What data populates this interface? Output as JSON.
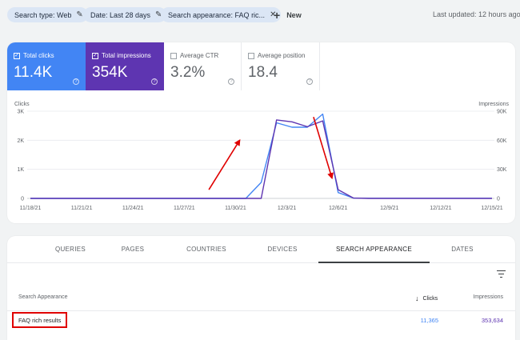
{
  "filters": {
    "chips": [
      {
        "label": "Search type: Web",
        "icon": "pencil-icon"
      },
      {
        "label": "Date: Last 28 days",
        "icon": "pencil-icon"
      },
      {
        "label": "Search appearance: FAQ ric...",
        "icon": "close-icon"
      }
    ],
    "new_label": "New",
    "last_updated": "Last updated: 12 hours ago"
  },
  "metrics": [
    {
      "label": "Total clicks",
      "value": "11.4K",
      "selected": true,
      "color": "#4285f4"
    },
    {
      "label": "Total impressions",
      "value": "354K",
      "selected": true,
      "color": "#5e35b1"
    },
    {
      "label": "Average CTR",
      "value": "3.2%",
      "selected": false
    },
    {
      "label": "Average position",
      "value": "18.4",
      "selected": false
    }
  ],
  "chart_data": {
    "type": "line",
    "left_axis_label": "Clicks",
    "right_axis_label": "Impressions",
    "left_ticks": [
      "3K",
      "2K",
      "1K",
      "0"
    ],
    "right_ticks": [
      "90K",
      "60K",
      "30K",
      "0"
    ],
    "x_ticks": [
      "11/18/21",
      "11/21/21",
      "11/24/21",
      "11/27/21",
      "11/30/21",
      "12/3/21",
      "12/6/21",
      "12/9/21",
      "12/12/21",
      "12/15/21"
    ],
    "ylim_left": [
      0,
      3000
    ],
    "ylim_right": [
      0,
      90000
    ],
    "series": [
      {
        "name": "Clicks",
        "color": "#4285f4",
        "axis": "left",
        "values": [
          0,
          0,
          0,
          0,
          0,
          0,
          0,
          0,
          0,
          0,
          0,
          0,
          0,
          0,
          0,
          550,
          2600,
          2450,
          2450,
          2900,
          200,
          10,
          5,
          5,
          5,
          5,
          5,
          5,
          5,
          5,
          5
        ]
      },
      {
        "name": "Impressions",
        "color": "#5e35b1",
        "axis": "right",
        "values": [
          0,
          0,
          0,
          0,
          0,
          0,
          0,
          0,
          0,
          0,
          0,
          0,
          0,
          0,
          0,
          0,
          81000,
          79000,
          74000,
          80000,
          9000,
          300,
          0,
          0,
          0,
          0,
          0,
          0,
          0,
          0,
          0
        ]
      }
    ],
    "annotations": [
      {
        "type": "arrow",
        "color": "#e00000",
        "from": [
          11.6,
          300
        ],
        "to": [
          13.6,
          2000
        ]
      },
      {
        "type": "arrow",
        "color": "#e00000",
        "from": [
          18.4,
          2800
        ],
        "to": [
          19.6,
          700
        ]
      }
    ]
  },
  "tabs": {
    "items": [
      "QUERIES",
      "PAGES",
      "COUNTRIES",
      "DEVICES",
      "SEARCH APPEARANCE",
      "DATES"
    ],
    "active": "SEARCH APPEARANCE"
  },
  "table": {
    "headers": {
      "name": "Search Appearance",
      "clicks": "Clicks",
      "impressions": "Impressions"
    },
    "sort_icon": "arrow-down-icon",
    "rows": [
      {
        "name": "FAQ rich results",
        "clicks": "11,365",
        "impressions": "353,634"
      }
    ]
  },
  "colors": {
    "accent": "#4285f4",
    "impressions": "#5e35b1",
    "highlight": "#e00000"
  }
}
